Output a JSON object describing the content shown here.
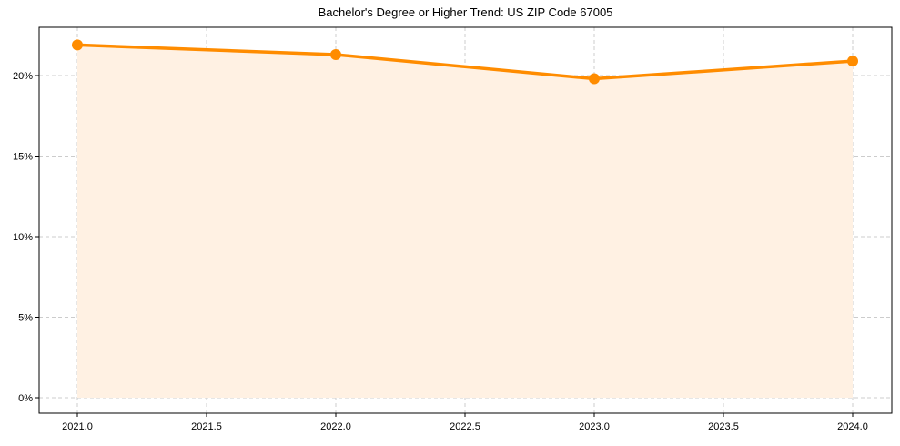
{
  "chart_data": {
    "type": "line",
    "title": "Bachelor's Degree or Higher Trend: US ZIP Code 67005",
    "xlabel": "",
    "ylabel": "",
    "x": [
      2021,
      2022,
      2023,
      2024
    ],
    "series": [
      {
        "name": "Bachelor's Degree or Higher",
        "values": [
          21.9,
          21.3,
          19.8,
          20.9
        ],
        "color": "#ff8c00",
        "fill": true,
        "fill_color": "#fff1e3"
      }
    ],
    "x_ticks": [
      "2021.0",
      "2021.5",
      "2022.0",
      "2022.5",
      "2023.0",
      "2023.5",
      "2024.0"
    ],
    "y_ticks": [
      "0%",
      "5%",
      "10%",
      "15%",
      "20%"
    ],
    "xlim": [
      2020.85,
      2024.15
    ],
    "ylim": [
      -1.1,
      23.0
    ],
    "grid": true,
    "legend": null
  }
}
